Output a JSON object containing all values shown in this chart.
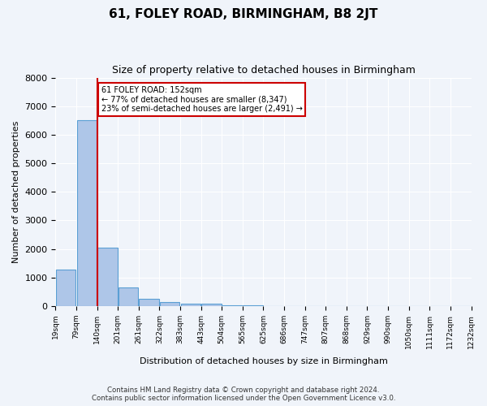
{
  "title": "61, FOLEY ROAD, BIRMINGHAM, B8 2JT",
  "subtitle": "Size of property relative to detached houses in Birmingham",
  "xlabel": "Distribution of detached houses by size in Birmingham",
  "ylabel": "Number of detached properties",
  "bar_values": [
    1270,
    6500,
    2060,
    650,
    260,
    130,
    90,
    80,
    30,
    20,
    10,
    5,
    5,
    5,
    5,
    5,
    5,
    5,
    5,
    5
  ],
  "bin_labels": [
    "19sqm",
    "79sqm",
    "140sqm",
    "201sqm",
    "261sqm",
    "322sqm",
    "383sqm",
    "443sqm",
    "504sqm",
    "565sqm",
    "625sqm",
    "686sqm",
    "747sqm",
    "807sqm",
    "868sqm",
    "929sqm",
    "990sqm",
    "1050sqm",
    "1111sqm",
    "1172sqm",
    "1232sqm"
  ],
  "bar_color": "#aec6e8",
  "bar_edgecolor": "#5a9fd4",
  "property_sqm": 152,
  "property_bin_index": 2,
  "vline_color": "#cc0000",
  "annotation_text": "61 FOLEY ROAD: 152sqm\n← 77% of detached houses are smaller (8,347)\n23% of semi-detached houses are larger (2,491) →",
  "annotation_boxcolor": "white",
  "annotation_edgecolor": "#cc0000",
  "ylim": [
    0,
    8000
  ],
  "yticks": [
    0,
    1000,
    2000,
    3000,
    4000,
    5000,
    6000,
    7000,
    8000
  ],
  "background_color": "#f0f4fa",
  "grid_color": "white",
  "footer_line1": "Contains HM Land Registry data © Crown copyright and database right 2024.",
  "footer_line2": "Contains public sector information licensed under the Open Government Licence v3.0."
}
